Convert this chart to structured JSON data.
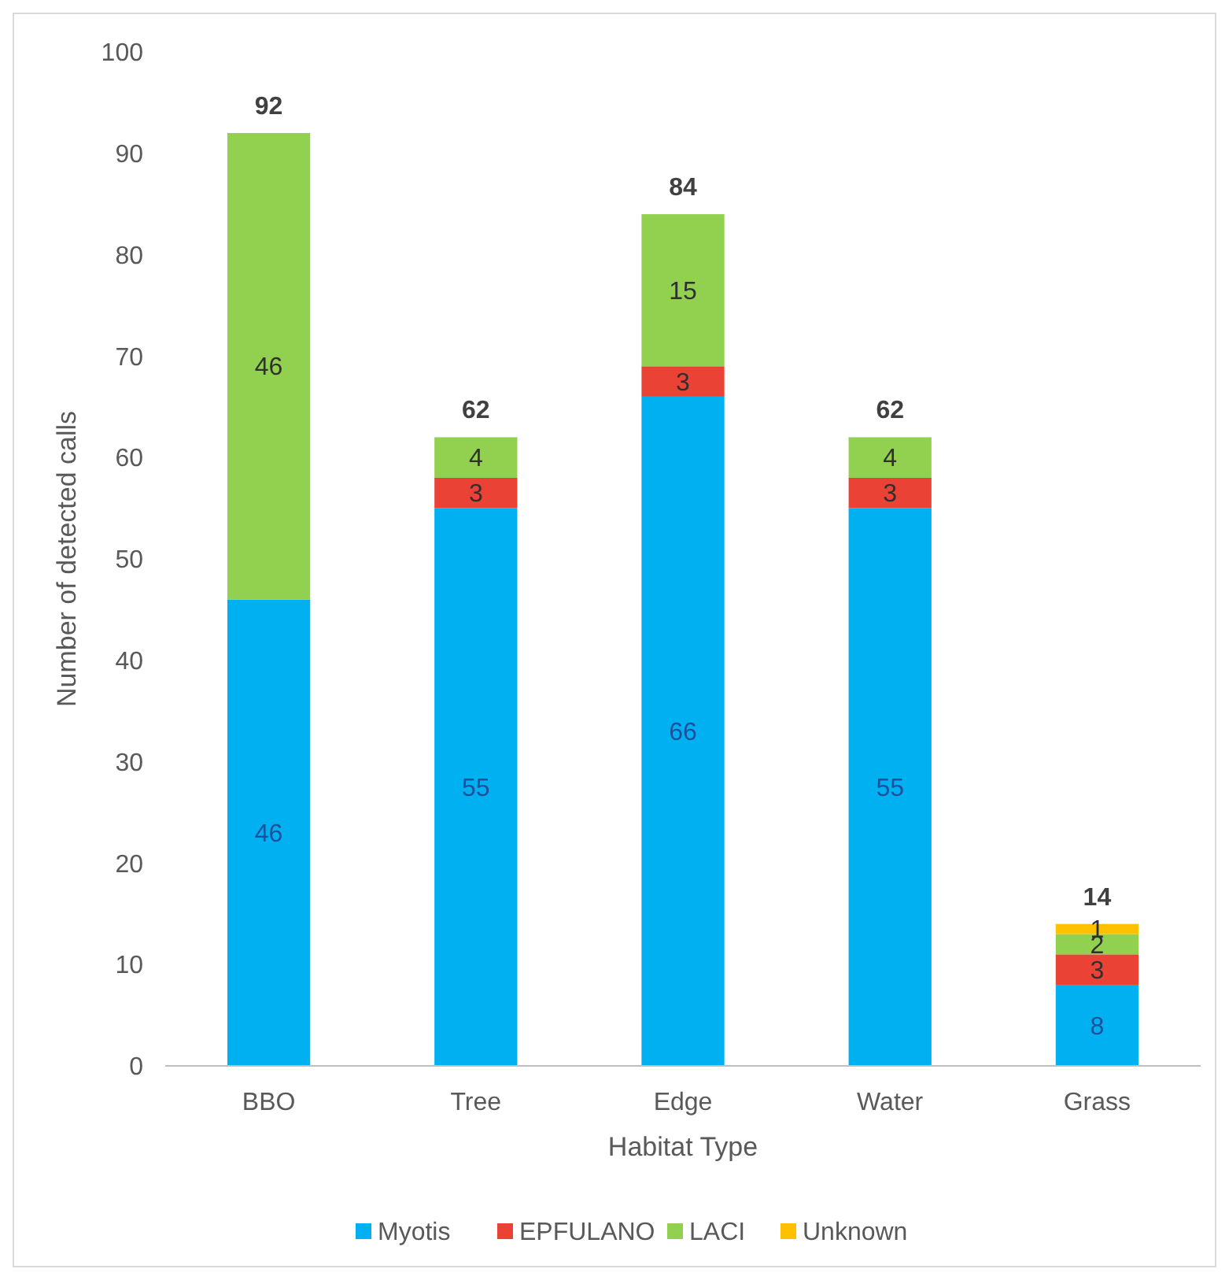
{
  "chart_data": {
    "type": "bar",
    "stacked": true,
    "xlabel": "Habitat Type",
    "ylabel": "Number of detected calls",
    "categories": [
      "BBO",
      "Tree",
      "Edge",
      "Water",
      "Grass"
    ],
    "series": [
      {
        "name": "Myotis",
        "color": "#00b0f0",
        "values": [
          46,
          55,
          66,
          55,
          8
        ],
        "value_labels": [
          "46",
          "55",
          "66",
          "55",
          "8"
        ]
      },
      {
        "name": "EPFULANO",
        "color": "#ea4335",
        "values": [
          0,
          3,
          3,
          3,
          3
        ],
        "value_labels": [
          null,
          "3",
          "3",
          "3",
          "3"
        ]
      },
      {
        "name": "LACI",
        "color": "#92d050",
        "values": [
          46,
          4,
          15,
          4,
          2
        ],
        "value_labels": [
          "46",
          "4",
          "15",
          "4",
          "2"
        ]
      },
      {
        "name": "Unknown",
        "color": "#ffc000",
        "values": [
          0,
          0,
          0,
          0,
          1
        ],
        "value_labels": [
          null,
          null,
          null,
          null,
          "1"
        ]
      }
    ],
    "totals": [
      "92",
      "62",
      "84",
      "62",
      "14"
    ],
    "ylim": [
      0,
      100
    ],
    "yticks": [
      0,
      10,
      20,
      30,
      40,
      50,
      60,
      70,
      80,
      90,
      100
    ],
    "grid": false,
    "legend": "bottom"
  }
}
